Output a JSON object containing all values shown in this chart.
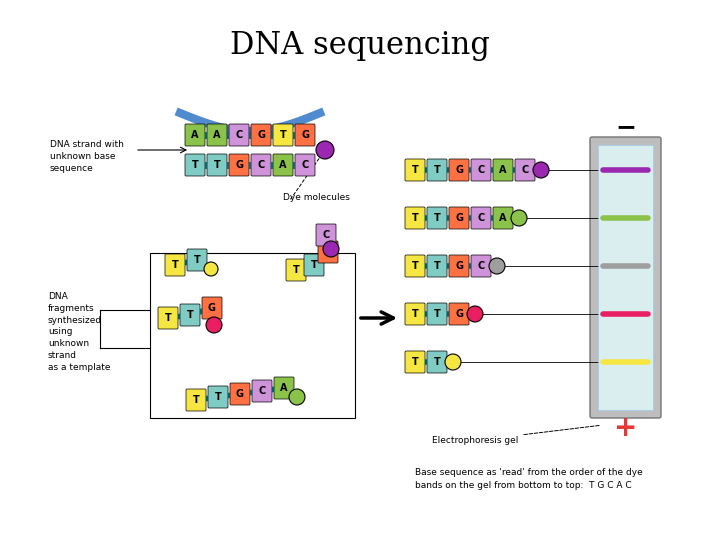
{
  "title": "DNA sequencing",
  "title_fontsize": 22,
  "title_fontfamily": "serif",
  "bg_color": "#ffffff",
  "label_dna_strand": "DNA strand with\nunknown base\nsequence",
  "label_dna_fragments": "DNA\nfragments\nsynthesized\nusing\nunknown\nstrand\nas a template",
  "label_dye_molecules": "Dye molecules",
  "label_electrophoresis": "Electrophoresis gel",
  "label_base_sequence": "Base sequence as 'read' from the order of the dye\nbands on the gel from bottom to top:  T G C A C",
  "color_A": "#8bc34a",
  "color_T": "#f5e642",
  "color_G": "#ff7043",
  "color_C": "#ce93d8",
  "color_T2": "#80cbc4",
  "color_dye_purple": "#9c27b0",
  "color_dye_green": "#8bc34a",
  "color_dye_gray": "#9e9e9e",
  "color_dye_pink": "#e91e63",
  "color_dye_yellow": "#f5e642",
  "backbone_color": "#0097a7",
  "arc_color": "#1565c0",
  "gel_outer_color": "#bdbdbd",
  "gel_inner_color": "#e0f7fa",
  "gel_inner_edge": "#90caf9",
  "minus_color": "#000000",
  "plus_color": "#e53935"
}
